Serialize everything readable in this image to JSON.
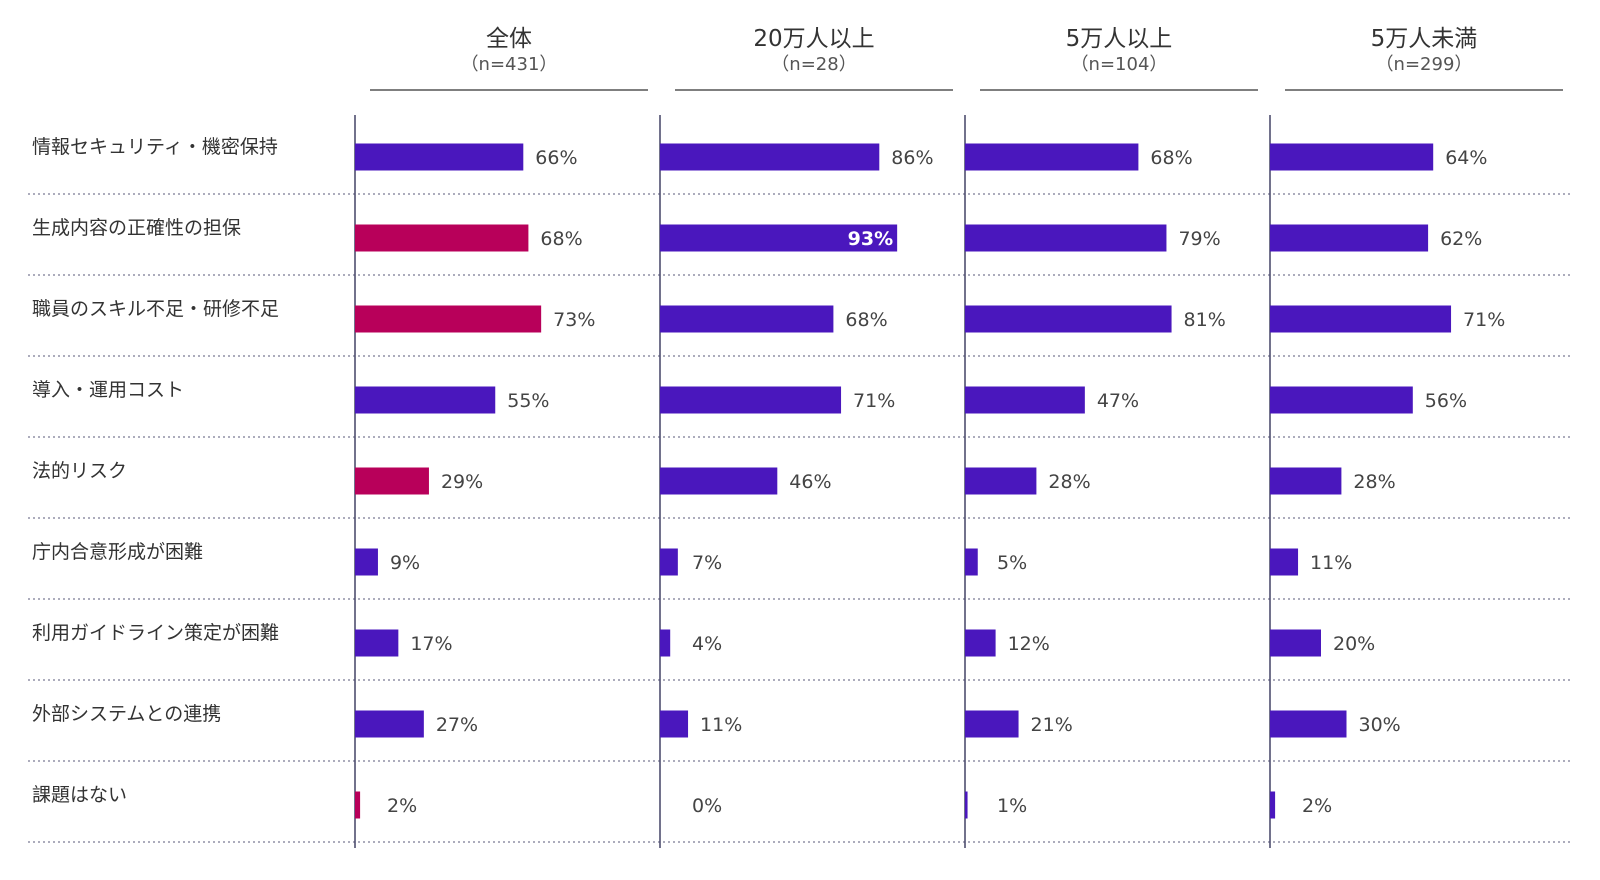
{
  "chart_data": {
    "type": "bar",
    "orientation": "horizontal",
    "categories": [
      "情報セキュリティ・機密保持",
      "生成内容の正確性の担保",
      "職員のスキル不足・研修不足",
      "導入・運用コスト",
      "法的リスク",
      "庁内合意形成が困難",
      "利用ガイドライン策定が困難",
      "外部システムとの連携",
      "課題はない"
    ],
    "panels": [
      {
        "title": "全体",
        "subtitle": "（n=431）",
        "values": [
          66,
          68,
          73,
          55,
          29,
          9,
          17,
          27,
          2
        ],
        "value_labels": [
          "66%",
          "68%",
          "73%",
          "55%",
          "29%",
          "9%",
          "17%",
          "27%",
          "2%"
        ],
        "highlight": [
          false,
          true,
          true,
          false,
          true,
          false,
          false,
          false,
          true
        ]
      },
      {
        "title": "20万人以上",
        "subtitle": "（n=28）",
        "values": [
          86,
          93,
          68,
          71,
          46,
          7,
          4,
          11,
          0
        ],
        "value_labels": [
          "86%",
          "93%",
          "68%",
          "71%",
          "46%",
          "7%",
          "4%",
          "11%",
          "0%"
        ],
        "highlight": [
          false,
          false,
          false,
          false,
          false,
          false,
          false,
          false,
          false
        ],
        "label_inside": [
          false,
          true,
          false,
          false,
          false,
          false,
          false,
          false,
          false
        ]
      },
      {
        "title": "5万人以上",
        "subtitle": "（n=104）",
        "values": [
          68,
          79,
          81,
          47,
          28,
          5,
          12,
          21,
          1
        ],
        "value_labels": [
          "68%",
          "79%",
          "81%",
          "47%",
          "28%",
          "5%",
          "12%",
          "21%",
          "1%"
        ],
        "highlight": [
          false,
          false,
          false,
          false,
          false,
          false,
          false,
          false,
          false
        ]
      },
      {
        "title": "5万人未満",
        "subtitle": "（n=299）",
        "values": [
          64,
          62,
          71,
          56,
          28,
          11,
          20,
          30,
          2
        ],
        "value_labels": [
          "64%",
          "62%",
          "71%",
          "56%",
          "28%",
          "11%",
          "20%",
          "30%",
          "2%"
        ],
        "highlight": [
          false,
          false,
          false,
          false,
          false,
          false,
          false,
          false,
          false
        ]
      }
    ],
    "xlim": [
      0,
      100
    ],
    "colors": {
      "default": "#4a17bd",
      "highlight": "#b8005a"
    },
    "grid": "dotted row separators"
  }
}
